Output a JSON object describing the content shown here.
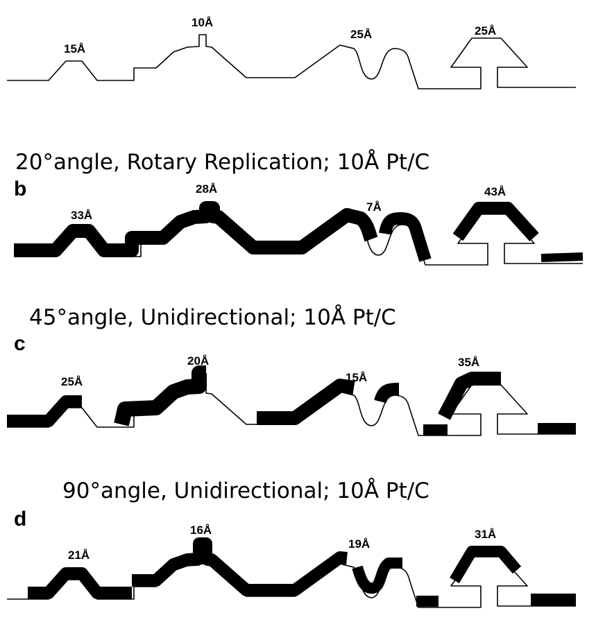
{
  "panels": [
    {
      "letter": "",
      "caption": "",
      "labels": [
        "15Å",
        "10Å",
        "25Å",
        "25Å"
      ]
    },
    {
      "letter": "b",
      "caption": "20°angle, Rotary Replication; 10Å Pt/C",
      "labels": [
        "33Å",
        "28Å",
        "7Å",
        "43Å"
      ]
    },
    {
      "letter": "c",
      "caption": "45°angle, Unidirectional; 10Å Pt/C",
      "labels": [
        "25Å",
        "20Å",
        "15Å",
        "35Å"
      ]
    },
    {
      "letter": "d",
      "caption": "90°angle, Unidirectional; 10Å Pt/C",
      "labels": [
        "21Å",
        "16Å",
        "19Å",
        "31Å"
      ]
    }
  ],
  "colors": {
    "ink": "#000000",
    "background": "#ffffff"
  }
}
